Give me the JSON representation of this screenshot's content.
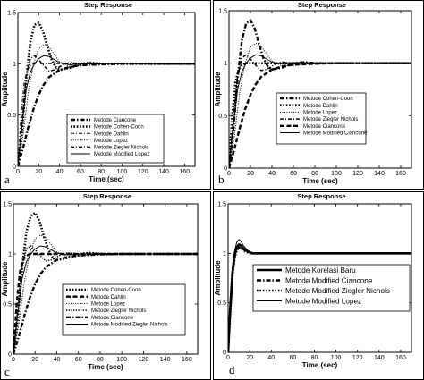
{
  "chart_data": [
    {
      "type": "line",
      "panel_letter": "a",
      "title": "Step Response",
      "xlabel": "Time (sec)",
      "ylabel": "Amplitude",
      "xlim": [
        0,
        170
      ],
      "ylim": [
        0,
        1.5
      ],
      "xticks": [
        0,
        20,
        40,
        60,
        80,
        100,
        120,
        140,
        160
      ],
      "yticks": [
        0,
        0.5,
        1,
        1.5
      ],
      "series": [
        {
          "name": "Metode Ciancone",
          "style": "dashdot-thick",
          "x": [
            0,
            5,
            10,
            15,
            20,
            25,
            30,
            40,
            50,
            60,
            80,
            100,
            170
          ],
          "y": [
            0,
            0.18,
            0.38,
            0.56,
            0.7,
            0.8,
            0.87,
            0.94,
            0.97,
            0.985,
            0.995,
            1.0,
            1.0
          ]
        },
        {
          "name": "Metode Cohen-Coon",
          "style": "dotted-thick",
          "x": [
            0,
            4,
            8,
            12,
            16,
            20,
            24,
            28,
            32,
            36,
            40,
            50,
            60,
            70,
            80,
            100,
            170
          ],
          "y": [
            0,
            0.35,
            0.85,
            1.22,
            1.38,
            1.4,
            1.32,
            1.18,
            1.05,
            0.97,
            0.94,
            0.96,
            1.0,
            1.01,
            1.0,
            1.0,
            1.0
          ]
        },
        {
          "name": "Metode Dahlin",
          "style": "dashdot-thin",
          "x": [
            0,
            3,
            6,
            9,
            12,
            15,
            18,
            21,
            24,
            30,
            40,
            60,
            80,
            170
          ],
          "y": [
            0,
            0.5,
            0.82,
            0.94,
            0.98,
            1.0,
            1.0,
            1.0,
            1.0,
            1.0,
            1.0,
            1.0,
            1.0,
            1.0
          ]
        },
        {
          "name": "Metode Lopez",
          "style": "dotted-thin",
          "x": [
            0,
            5,
            10,
            15,
            20,
            25,
            30,
            35,
            40,
            50,
            60,
            80,
            100,
            170
          ],
          "y": [
            0,
            0.3,
            0.72,
            1.0,
            1.15,
            1.19,
            1.16,
            1.09,
            1.02,
            0.97,
            0.98,
            1.0,
            1.0,
            1.0
          ]
        },
        {
          "name": "Metode Ziegler Nichols",
          "style": "dashdot-medium",
          "x": [
            0,
            4,
            8,
            12,
            16,
            20,
            25,
            30,
            35,
            40,
            45,
            50,
            60,
            80,
            100,
            170
          ],
          "y": [
            0,
            0.45,
            0.88,
            1.05,
            1.08,
            1.04,
            0.98,
            0.93,
            0.94,
            0.97,
            1.0,
            1.01,
            1.0,
            1.0,
            1.0,
            1.0
          ]
        },
        {
          "name": "Metode Modified Lopez",
          "style": "solid",
          "x": [
            0,
            4,
            8,
            12,
            16,
            20,
            25,
            30,
            35,
            40,
            50,
            60,
            80,
            100,
            170
          ],
          "y": [
            0,
            0.4,
            0.75,
            0.92,
            1.0,
            1.05,
            1.08,
            1.07,
            1.04,
            1.01,
            0.99,
            1.0,
            1.0,
            1.0,
            1.0
          ]
        }
      ]
    },
    {
      "type": "line",
      "panel_letter": "b",
      "title": "Step Response",
      "xlabel": "Time (sec)",
      "ylabel": "Amplitude",
      "xlim": [
        0,
        170
      ],
      "ylim": [
        0,
        1.5
      ],
      "xticks": [
        0,
        20,
        40,
        60,
        80,
        100,
        120,
        140,
        160
      ],
      "yticks": [
        0,
        0.5,
        1,
        1.5
      ],
      "series": [
        {
          "name": "Metode Cohen-Coon",
          "style": "dashdot-thick",
          "x": [
            0,
            4,
            8,
            12,
            16,
            20,
            24,
            28,
            32,
            36,
            40,
            50,
            60,
            70,
            80,
            100,
            170
          ],
          "y": [
            0,
            0.35,
            0.85,
            1.22,
            1.38,
            1.41,
            1.33,
            1.18,
            1.05,
            0.97,
            0.94,
            0.96,
            1.0,
            1.01,
            1.0,
            1.0,
            1.0
          ]
        },
        {
          "name": "Metode Dahlin",
          "style": "dotted-thick",
          "x": [
            0,
            3,
            6,
            9,
            12,
            15,
            18,
            21,
            24,
            30,
            40,
            60,
            80,
            170
          ],
          "y": [
            0,
            0.5,
            0.82,
            0.94,
            0.98,
            1.0,
            1.0,
            1.0,
            1.0,
            1.0,
            1.0,
            1.0,
            1.0,
            1.0
          ]
        },
        {
          "name": "Metode Lopez",
          "style": "dotted-thin",
          "x": [
            0,
            5,
            10,
            15,
            20,
            25,
            30,
            35,
            40,
            50,
            60,
            80,
            100,
            170
          ],
          "y": [
            0,
            0.3,
            0.72,
            1.0,
            1.15,
            1.19,
            1.16,
            1.09,
            1.02,
            0.97,
            0.98,
            1.0,
            1.0,
            1.0
          ]
        },
        {
          "name": "Metode Ziegler Nichols",
          "style": "dashdot-medium",
          "x": [
            0,
            4,
            8,
            12,
            16,
            20,
            25,
            30,
            35,
            40,
            45,
            50,
            60,
            80,
            100,
            170
          ],
          "y": [
            0,
            0.45,
            0.88,
            1.05,
            1.08,
            1.04,
            0.98,
            0.93,
            0.94,
            0.97,
            1.0,
            1.01,
            1.0,
            1.0,
            1.0,
            1.0
          ]
        },
        {
          "name": "Metode Ciancone",
          "style": "dashed-thick",
          "x": [
            0,
            5,
            10,
            15,
            20,
            25,
            30,
            40,
            50,
            60,
            80,
            100,
            170
          ],
          "y": [
            0,
            0.18,
            0.38,
            0.56,
            0.7,
            0.8,
            0.87,
            0.94,
            0.97,
            0.985,
            0.995,
            1.0,
            1.0
          ]
        },
        {
          "name": "Metode Modified Ciancone",
          "style": "solid",
          "x": [
            0,
            4,
            8,
            12,
            16,
            20,
            25,
            30,
            35,
            40,
            50,
            60,
            80,
            100,
            170
          ],
          "y": [
            0,
            0.4,
            0.75,
            0.92,
            1.0,
            1.05,
            1.08,
            1.07,
            1.04,
            1.01,
            0.99,
            1.0,
            1.0,
            1.0,
            1.0
          ]
        }
      ]
    },
    {
      "type": "line",
      "panel_letter": "c",
      "title": "Step Response",
      "xlabel": "Time (sec)",
      "ylabel": "Amplitude",
      "xlim": [
        0,
        170
      ],
      "ylim": [
        0,
        1.5
      ],
      "xticks": [
        0,
        20,
        40,
        60,
        80,
        100,
        120,
        140,
        160
      ],
      "yticks": [
        0,
        0.5,
        1,
        1.5
      ],
      "series": [
        {
          "name": "Metode Cohen-Coon",
          "style": "dotted-thick",
          "x": [
            0,
            4,
            8,
            12,
            16,
            20,
            24,
            28,
            32,
            36,
            40,
            50,
            60,
            70,
            80,
            100,
            170
          ],
          "y": [
            0,
            0.35,
            0.85,
            1.22,
            1.38,
            1.41,
            1.33,
            1.18,
            1.05,
            0.97,
            0.94,
            0.96,
            1.0,
            1.01,
            1.0,
            1.0,
            1.0
          ]
        },
        {
          "name": "Metode Dahlin",
          "style": "dashed-thick",
          "x": [
            0,
            3,
            6,
            9,
            12,
            15,
            18,
            21,
            24,
            30,
            40,
            60,
            80,
            170
          ],
          "y": [
            0,
            0.5,
            0.82,
            0.94,
            0.98,
            1.0,
            1.0,
            1.0,
            1.0,
            1.0,
            1.0,
            1.0,
            1.0,
            1.0
          ]
        },
        {
          "name": "Metode Lopez",
          "style": "dotted-thin",
          "x": [
            0,
            5,
            10,
            15,
            20,
            25,
            30,
            35,
            40,
            50,
            60,
            80,
            100,
            170
          ],
          "y": [
            0,
            0.3,
            0.72,
            1.0,
            1.15,
            1.19,
            1.16,
            1.09,
            1.02,
            0.97,
            0.98,
            1.0,
            1.0,
            1.0
          ]
        },
        {
          "name": "Metode Ziegler Nichols",
          "style": "dotted-medium",
          "x": [
            0,
            4,
            8,
            12,
            16,
            20,
            25,
            30,
            35,
            40,
            45,
            50,
            60,
            80,
            100,
            170
          ],
          "y": [
            0,
            0.45,
            0.88,
            1.05,
            1.08,
            1.04,
            0.98,
            0.93,
            0.94,
            0.97,
            1.0,
            1.01,
            1.0,
            1.0,
            1.0,
            1.0
          ]
        },
        {
          "name": "Metode Ciancone",
          "style": "dashdot-thick",
          "x": [
            0,
            5,
            10,
            15,
            20,
            25,
            30,
            40,
            50,
            60,
            80,
            100,
            170
          ],
          "y": [
            0,
            0.18,
            0.38,
            0.56,
            0.7,
            0.8,
            0.87,
            0.94,
            0.97,
            0.985,
            0.995,
            1.0,
            1.0
          ]
        },
        {
          "name": "Metode Modified Ziegler Nichols",
          "style": "solid",
          "x": [
            0,
            4,
            8,
            12,
            16,
            20,
            25,
            30,
            35,
            40,
            50,
            60,
            80,
            100,
            170
          ],
          "y": [
            0,
            0.4,
            0.75,
            0.92,
            1.0,
            1.05,
            1.08,
            1.07,
            1.04,
            1.01,
            0.99,
            1.0,
            1.0,
            1.0,
            1.0
          ]
        }
      ]
    },
    {
      "type": "line",
      "panel_letter": "d",
      "title": "Step Response",
      "xlabel": "Time (sec)",
      "ylabel": "Amplitude",
      "xlim": [
        0,
        170
      ],
      "ylim": [
        0,
        1.5
      ],
      "xticks": [
        0,
        20,
        40,
        60,
        80,
        100,
        120,
        140,
        160
      ],
      "yticks": [
        0,
        0.5,
        1,
        1.5
      ],
      "series": [
        {
          "name": "Metode Korelasi Baru",
          "style": "solid-thick",
          "x": [
            0,
            2,
            4,
            6,
            8,
            10,
            12,
            14,
            18,
            22,
            30,
            40,
            60,
            80,
            170
          ],
          "y": [
            0,
            0.45,
            0.8,
            0.98,
            1.06,
            1.09,
            1.08,
            1.05,
            1.02,
            1.0,
            1.0,
            1.0,
            1.0,
            1.0,
            1.0
          ]
        },
        {
          "name": "Metode Modified Ciancone",
          "style": "dashdot-thick",
          "x": [
            0,
            2,
            4,
            6,
            8,
            10,
            12,
            14,
            18,
            22,
            30,
            40,
            60,
            80,
            170
          ],
          "y": [
            0,
            0.42,
            0.78,
            0.96,
            1.04,
            1.07,
            1.06,
            1.04,
            1.02,
            1.0,
            1.0,
            1.0,
            1.0,
            1.0,
            1.0
          ]
        },
        {
          "name": "Metode Modified Ziegler Nichols",
          "style": "dotted-thick",
          "x": [
            0,
            2,
            4,
            6,
            8,
            10,
            12,
            14,
            18,
            22,
            30,
            40,
            60,
            80,
            170
          ],
          "y": [
            0,
            0.4,
            0.76,
            0.95,
            1.03,
            1.06,
            1.05,
            1.03,
            1.01,
            1.0,
            1.0,
            1.0,
            1.0,
            1.0,
            1.0
          ]
        },
        {
          "name": "Metode Modified Lopez",
          "style": "solid",
          "x": [
            0,
            2,
            4,
            6,
            8,
            10,
            12,
            14,
            18,
            22,
            30,
            40,
            60,
            80,
            170
          ],
          "y": [
            0,
            0.5,
            0.86,
            1.02,
            1.11,
            1.14,
            1.12,
            1.08,
            1.03,
            1.01,
            1.0,
            1.0,
            1.0,
            1.0,
            1.0
          ]
        }
      ]
    }
  ]
}
